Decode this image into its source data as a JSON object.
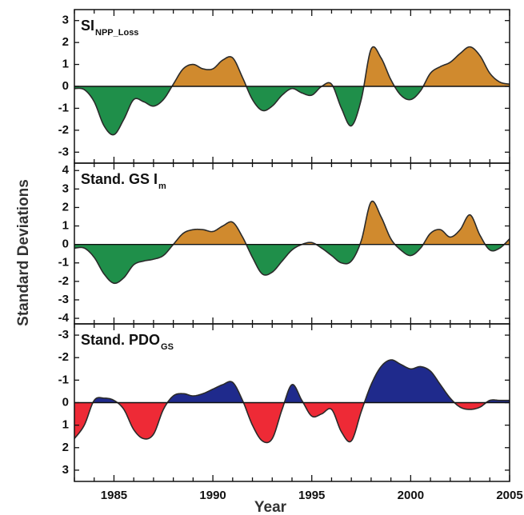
{
  "chart_data": {
    "type": "area",
    "ylabel": "Standard Deviations",
    "xlabel": "Year",
    "xlim": [
      1983,
      2005
    ],
    "x_ticks": [
      1985,
      1990,
      1995,
      2000,
      2005
    ],
    "colors": {
      "green": "#1f8f4a",
      "orange": "#d08a2e",
      "red": "#ee2a36",
      "blue": "#1f2a8c",
      "line": "#2a2a2a"
    },
    "panels": [
      {
        "title_main": "SI",
        "title_sub": "NPP_Loss",
        "ylim": [
          3.5,
          -3.5
        ],
        "y_ticks": [
          -3,
          -2,
          -1,
          0,
          1,
          2,
          3
        ],
        "y_tick_labels": [
          "-3",
          "-2",
          "-1",
          "0",
          "1",
          "2",
          "3"
        ],
        "positive_color": "#d08a2e",
        "negative_color": "#1f8f4a",
        "x": [
          1983,
          1983.5,
          1984,
          1984.5,
          1985,
          1985.5,
          1986,
          1986.5,
          1987,
          1987.5,
          1988,
          1988.5,
          1989,
          1989.5,
          1990,
          1990.5,
          1991,
          1991.5,
          1992,
          1992.5,
          1993,
          1993.5,
          1994,
          1994.5,
          1995,
          1995.5,
          1996,
          1996.5,
          1997,
          1997.5,
          1998,
          1998.5,
          1999,
          1999.5,
          2000,
          2000.5,
          2001,
          2001.5,
          2002,
          2002.5,
          2003,
          2003.5,
          2004,
          2004.5,
          2005
        ],
        "values": [
          -0.1,
          -0.15,
          -0.7,
          -1.8,
          -2.2,
          -1.5,
          -0.6,
          -0.7,
          -0.9,
          -0.6,
          0.1,
          0.8,
          1.0,
          0.8,
          0.8,
          1.2,
          1.3,
          0.4,
          -0.6,
          -1.1,
          -0.9,
          -0.4,
          -0.1,
          -0.3,
          -0.4,
          0.0,
          0.1,
          -1.0,
          -1.8,
          -0.6,
          1.7,
          1.3,
          0.3,
          -0.4,
          -0.6,
          -0.2,
          0.6,
          0.9,
          1.1,
          1.5,
          1.8,
          1.4,
          0.6,
          0.2,
          0.1
        ]
      },
      {
        "title_main": "Stand. GS I",
        "title_sub": "m",
        "ylim": [
          4.4,
          -4.3
        ],
        "y_ticks": [
          -4,
          -3,
          -2,
          -1,
          0,
          1,
          2,
          3,
          4
        ],
        "y_tick_labels": [
          "-4",
          "-3",
          "-2",
          "-1",
          "0",
          "1",
          "2",
          "3",
          "4"
        ],
        "positive_color": "#d08a2e",
        "negative_color": "#1f8f4a",
        "x": [
          1983,
          1983.5,
          1984,
          1984.5,
          1985,
          1985.5,
          1986,
          1986.5,
          1987,
          1987.5,
          1988,
          1988.5,
          1989,
          1989.5,
          1990,
          1990.5,
          1991,
          1991.5,
          1992,
          1992.5,
          1993,
          1993.5,
          1994,
          1994.5,
          1995,
          1995.5,
          1996,
          1996.5,
          1997,
          1997.5,
          1998,
          1998.5,
          1999,
          1999.5,
          2000,
          2000.5,
          2001,
          2001.5,
          2002,
          2002.5,
          2003,
          2003.5,
          2004,
          2004.5,
          2005
        ],
        "values": [
          -0.2,
          -0.2,
          -0.7,
          -1.6,
          -2.1,
          -1.8,
          -1.1,
          -0.9,
          -0.8,
          -0.6,
          0.0,
          0.6,
          0.8,
          0.8,
          0.7,
          1.0,
          1.2,
          0.4,
          -0.7,
          -1.6,
          -1.5,
          -0.9,
          -0.3,
          0.0,
          0.1,
          -0.2,
          -0.6,
          -1.0,
          -0.9,
          0.2,
          2.3,
          1.5,
          0.3,
          -0.3,
          -0.6,
          -0.2,
          0.6,
          0.8,
          0.4,
          0.8,
          1.6,
          0.5,
          -0.3,
          -0.2,
          0.3
        ]
      },
      {
        "title_main": "Stand. PDO",
        "title_sub": "GS",
        "ylim": [
          -3.5,
          3.5
        ],
        "y_ticks": [
          -3,
          -2,
          -1,
          0,
          1,
          2,
          3
        ],
        "y_tick_labels": [
          "-3",
          "-2",
          "-1",
          "0",
          "1",
          "2",
          "3"
        ],
        "positive_color": "#ee2a36",
        "negative_color": "#1f2a8c",
        "x": [
          1983,
          1983.5,
          1984,
          1984.5,
          1985,
          1985.5,
          1986,
          1986.5,
          1987,
          1987.5,
          1988,
          1988.5,
          1989,
          1989.5,
          1990,
          1990.5,
          1991,
          1991.5,
          1992,
          1992.5,
          1993,
          1993.5,
          1994,
          1994.5,
          1995,
          1995.5,
          1996,
          1996.5,
          1997,
          1997.5,
          1998,
          1998.5,
          1999,
          1999.5,
          2000,
          2000.5,
          2001,
          2001.5,
          2002,
          2002.5,
          2003,
          2003.5,
          2004,
          2004.5,
          2005
        ],
        "values": [
          1.6,
          1.0,
          -0.1,
          -0.2,
          -0.1,
          0.3,
          1.2,
          1.6,
          1.4,
          0.3,
          -0.3,
          -0.4,
          -0.3,
          -0.4,
          -0.6,
          -0.8,
          -0.9,
          -0.1,
          1.0,
          1.7,
          1.6,
          0.3,
          -0.8,
          -0.1,
          0.6,
          0.5,
          0.3,
          1.3,
          1.7,
          0.4,
          -0.8,
          -1.6,
          -1.9,
          -1.7,
          -1.5,
          -1.6,
          -1.4,
          -0.8,
          -0.2,
          0.2,
          0.3,
          0.2,
          -0.1,
          -0.1,
          -0.1
        ]
      }
    ]
  }
}
